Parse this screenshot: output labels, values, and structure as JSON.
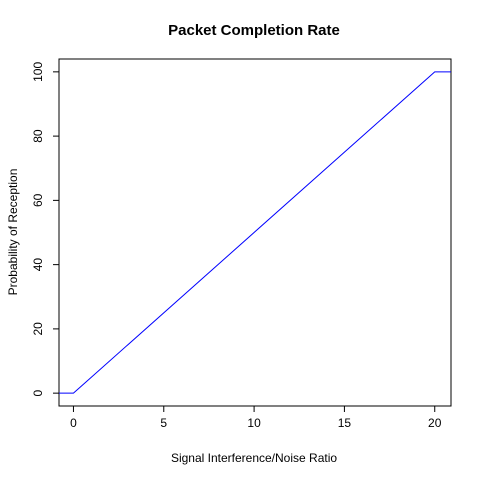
{
  "chart_data": {
    "type": "line",
    "title": "Packet Completion Rate",
    "xlabel": "Signal Interference/Noise Ratio",
    "ylabel": "Probability of Reception",
    "xlim": [
      -0.8,
      20.9
    ],
    "ylim": [
      -4,
      104
    ],
    "xticks": [
      0,
      5,
      10,
      15,
      20
    ],
    "yticks": [
      0,
      20,
      40,
      60,
      80,
      100
    ],
    "grid": false,
    "line_color": "#0000ff",
    "series": [
      {
        "x": [
          -0.8,
          0,
          20,
          20.9
        ],
        "y": [
          0,
          0,
          100,
          100
        ]
      }
    ]
  }
}
